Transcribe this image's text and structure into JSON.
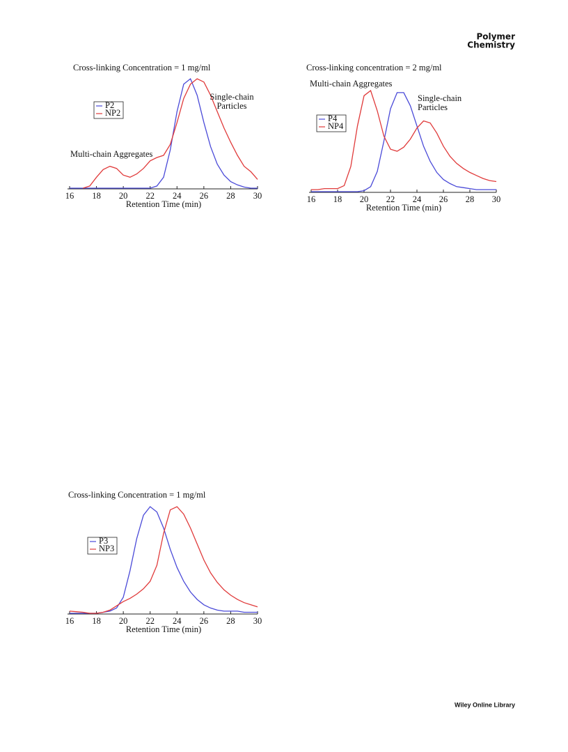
{
  "header": {
    "title": [
      "Polymer",
      "Chemistry"
    ]
  },
  "footer": {
    "text": "Wiley Online Library"
  },
  "chart_data": [
    {
      "type": "line",
      "title": "Cross-linking Concentration = 1 mg/ml",
      "x_label": "Retention Time (min)",
      "x": [
        16,
        16.5,
        17,
        17.5,
        18,
        18.5,
        19,
        19.5,
        20,
        20.5,
        21,
        21.5,
        22,
        22.5,
        23,
        23.5,
        24,
        24.5,
        25,
        25.5,
        26,
        26.5,
        27,
        27.5,
        28,
        28.5,
        29,
        29.5,
        30
      ],
      "series": [
        {
          "name": "P2",
          "color": "#4a4ad8",
          "values": [
            0,
            0,
            0,
            0,
            0,
            0,
            0,
            0,
            0,
            0,
            0,
            0,
            0,
            0.02,
            0.1,
            0.35,
            0.7,
            0.95,
            1.0,
            0.85,
            0.6,
            0.38,
            0.22,
            0.12,
            0.06,
            0.03,
            0.01,
            0,
            0
          ]
        },
        {
          "name": "NP2",
          "color": "#e03a3a",
          "values": [
            null,
            null,
            0,
            0.02,
            0.1,
            0.17,
            0.2,
            0.18,
            0.12,
            0.1,
            0.13,
            0.18,
            0.25,
            0.28,
            0.3,
            0.4,
            0.6,
            0.82,
            0.95,
            1.0,
            0.97,
            0.85,
            0.7,
            0.55,
            0.42,
            0.3,
            0.2,
            0.15,
            0.08
          ]
        }
      ],
      "annotations": [
        [
          "Multi-chain Aggregates"
        ],
        [
          "Single-chain",
          "Particles"
        ]
      ],
      "xlim": [
        16,
        30
      ],
      "xticks": [
        16,
        18,
        20,
        22,
        24,
        26,
        28,
        30
      ],
      "ylim": [
        0,
        1
      ]
    },
    {
      "type": "line",
      "title": "Cross-linking concentration = 2 mg/ml",
      "x_label": "Retention Time (min)",
      "x": [
        16,
        16.5,
        17,
        17.5,
        18,
        18.5,
        19,
        19.5,
        20,
        20.5,
        21,
        21.5,
        22,
        22.5,
        23,
        23.5,
        24,
        24.5,
        25,
        25.5,
        26,
        26.5,
        27,
        27.5,
        28,
        28.5,
        29,
        29.5,
        30
      ],
      "series": [
        {
          "name": "P4",
          "color": "#4a4ad8",
          "values": [
            0,
            0,
            0,
            0,
            0,
            0,
            0,
            0,
            0.01,
            0.05,
            0.2,
            0.5,
            0.82,
            0.98,
            0.98,
            0.85,
            0.65,
            0.45,
            0.3,
            0.19,
            0.12,
            0.08,
            0.05,
            0.04,
            0.03,
            0.02,
            0.02,
            0.02,
            0.02
          ]
        },
        {
          "name": "NP4",
          "color": "#e03a3a",
          "values": [
            0.02,
            0.02,
            0.03,
            0.03,
            0.03,
            0.06,
            0.25,
            0.65,
            0.95,
            1.0,
            0.8,
            0.55,
            0.42,
            0.4,
            0.44,
            0.52,
            0.63,
            0.7,
            0.68,
            0.58,
            0.45,
            0.35,
            0.28,
            0.23,
            0.19,
            0.16,
            0.13,
            0.11,
            0.1
          ]
        }
      ],
      "annotations": [
        [
          "Multi-chain Aggregates"
        ],
        [
          "Single-chain",
          "Particles"
        ]
      ],
      "xlim": [
        16,
        30
      ],
      "xticks": [
        16,
        18,
        20,
        22,
        24,
        26,
        28,
        30
      ],
      "ylim": [
        0,
        1
      ]
    },
    {
      "type": "line",
      "title": "Cross-linking Concentration = 1 mg/ml",
      "x_label": "Retention Time (min)",
      "x": [
        16,
        16.5,
        17,
        17.5,
        18,
        18.5,
        19,
        19.5,
        20,
        20.5,
        21,
        21.5,
        22,
        22.5,
        23,
        23.5,
        24,
        24.5,
        25,
        25.5,
        26,
        26.5,
        27,
        27.5,
        28,
        28.5,
        29,
        29.5,
        30
      ],
      "series": [
        {
          "name": "P3",
          "color": "#4a4ad8",
          "values": [
            0,
            0,
            0,
            0,
            0,
            0.01,
            0.02,
            0.05,
            0.15,
            0.4,
            0.7,
            0.92,
            1.0,
            0.95,
            0.8,
            0.6,
            0.43,
            0.3,
            0.2,
            0.13,
            0.08,
            0.05,
            0.03,
            0.02,
            0.02,
            0.02,
            0.01,
            0.01,
            0.01
          ]
        },
        {
          "name": "NP3",
          "color": "#e03a3a",
          "values": [
            0.02,
            0.015,
            0.01,
            0,
            0,
            0.01,
            0.03,
            0.07,
            0.11,
            0.14,
            0.18,
            0.23,
            0.3,
            0.45,
            0.75,
            0.97,
            1.0,
            0.93,
            0.8,
            0.65,
            0.5,
            0.38,
            0.29,
            0.22,
            0.17,
            0.13,
            0.1,
            0.08,
            0.06
          ]
        }
      ],
      "xlim": [
        16,
        30
      ],
      "xticks": [
        16,
        18,
        20,
        22,
        24,
        26,
        28,
        30
      ],
      "ylim": [
        0,
        1
      ]
    }
  ]
}
